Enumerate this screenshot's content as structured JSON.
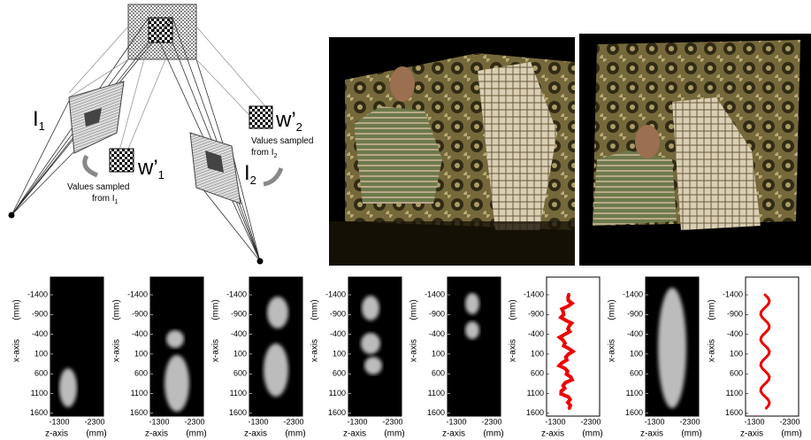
{
  "diagram": {
    "image_labels": [
      {
        "text": "I",
        "sub": "1"
      },
      {
        "text": "I",
        "sub": "2"
      }
    ],
    "window_labels": [
      {
        "text": "w’",
        "sub": "1"
      },
      {
        "text": "w’",
        "sub": "2"
      }
    ],
    "notes": [
      {
        "line1": "Values sampled",
        "line2": "from I",
        "sub": "1"
      },
      {
        "line1": "Values sampled",
        "line2": "from I",
        "sub": "2"
      }
    ]
  },
  "plots": {
    "y_label": "x-axis",
    "y_unit": "(mm)",
    "x_label": "z-axis",
    "x_unit": "(mm)",
    "yticks": [
      -1400,
      -900,
      -400,
      100,
      600,
      1100,
      1600
    ],
    "xticks": [
      -1300,
      -2300
    ]
  }
}
